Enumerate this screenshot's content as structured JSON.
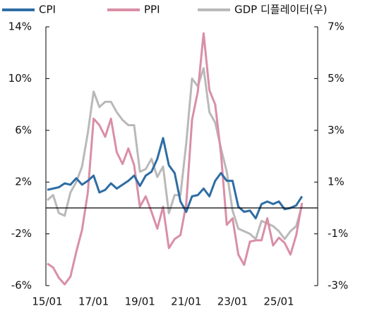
{
  "chart_data": {
    "type": "line",
    "categories": [
      "15/01",
      "15/04",
      "15/07",
      "15/10",
      "16/01",
      "16/04",
      "16/07",
      "16/10",
      "17/01",
      "17/04",
      "17/07",
      "17/10",
      "18/01",
      "18/04",
      "18/07",
      "18/10",
      "19/01",
      "19/04",
      "19/07",
      "19/10",
      "20/01",
      "20/04",
      "20/07",
      "20/10",
      "21/01",
      "21/04",
      "21/07",
      "21/10",
      "22/01",
      "22/04",
      "22/07",
      "22/10",
      "23/01",
      "23/04",
      "23/07",
      "23/10",
      "24/01",
      "24/04",
      "24/07",
      "24/10",
      "25/01",
      "25/04",
      "25/07",
      "25/10",
      "26/01"
    ],
    "xticks": [
      "15/01",
      "17/01",
      "19/01",
      "21/01",
      "23/01",
      "25/01"
    ],
    "series": [
      {
        "name": "CPI",
        "color": "#2e6da4",
        "values": [
          1.4,
          1.5,
          1.6,
          1.9,
          1.8,
          2.3,
          1.8,
          2.1,
          2.5,
          1.2,
          1.4,
          1.9,
          1.5,
          1.8,
          2.1,
          2.5,
          1.7,
          2.5,
          2.8,
          3.8,
          5.4,
          3.3,
          2.7,
          0.5,
          -0.3,
          0.9,
          1.0,
          1.5,
          0.9,
          2.1,
          2.7,
          2.1,
          2.1,
          0.1,
          -0.3,
          -0.2,
          -0.8,
          0.3,
          0.5,
          0.3,
          0.5,
          -0.1,
          0.0,
          0.2,
          0.9
        ]
      },
      {
        "name": "PPI",
        "color": "#d98fa6",
        "values": [
          -4.3,
          -4.6,
          -5.4,
          -5.9,
          -5.3,
          -3.4,
          -1.7,
          1.2,
          6.9,
          6.4,
          5.5,
          6.9,
          4.3,
          3.4,
          4.6,
          3.3,
          0.1,
          0.9,
          -0.3,
          -1.6,
          0.1,
          -3.1,
          -2.4,
          -2.1,
          0.3,
          6.8,
          9.0,
          13.5,
          9.1,
          8.0,
          4.2,
          -1.3,
          -0.8,
          -3.6,
          -4.4,
          -2.6,
          -2.5,
          -2.5,
          -0.8,
          -2.9,
          -2.3,
          -2.7,
          -3.6,
          -2.1,
          0.4
        ]
      },
      {
        "name": "GDP 디플레이터(우)",
        "color": "#b9b9b9",
        "axis": "y2",
        "values": [
          0.3,
          0.5,
          -0.2,
          -0.3,
          0.6,
          1.0,
          1.6,
          2.9,
          4.5,
          3.9,
          4.1,
          4.1,
          3.7,
          3.4,
          3.2,
          3.2,
          1.4,
          1.5,
          1.9,
          1.2,
          1.6,
          -0.2,
          0.5,
          0.5,
          2.5,
          5.0,
          4.7,
          5.4,
          3.7,
          3.3,
          2.3,
          1.4,
          -0.1,
          -0.8,
          -0.9,
          -1.0,
          -1.2,
          -0.5,
          -0.6,
          -0.7,
          -0.9,
          -1.2,
          -0.9,
          -0.7,
          0.1
        ]
      }
    ],
    "ylim": [
      -6,
      14
    ],
    "yticks": [
      {
        "value": 14,
        "label": "14%"
      },
      {
        "value": 10,
        "label": "10%"
      },
      {
        "value": 6,
        "label": "6%"
      },
      {
        "value": 2,
        "label": "2%"
      },
      {
        "value": -2,
        "label": "-2%"
      },
      {
        "value": -6,
        "label": "-6%"
      }
    ],
    "y2lim": [
      -3,
      7
    ],
    "y2ticks": [
      {
        "value": 7,
        "label": "7%"
      },
      {
        "value": 5,
        "label": "5%"
      },
      {
        "value": 3,
        "label": "3%"
      },
      {
        "value": 1,
        "label": "1%"
      },
      {
        "value": -1,
        "label": "-1%"
      },
      {
        "value": -3,
        "label": "-3%"
      }
    ]
  }
}
